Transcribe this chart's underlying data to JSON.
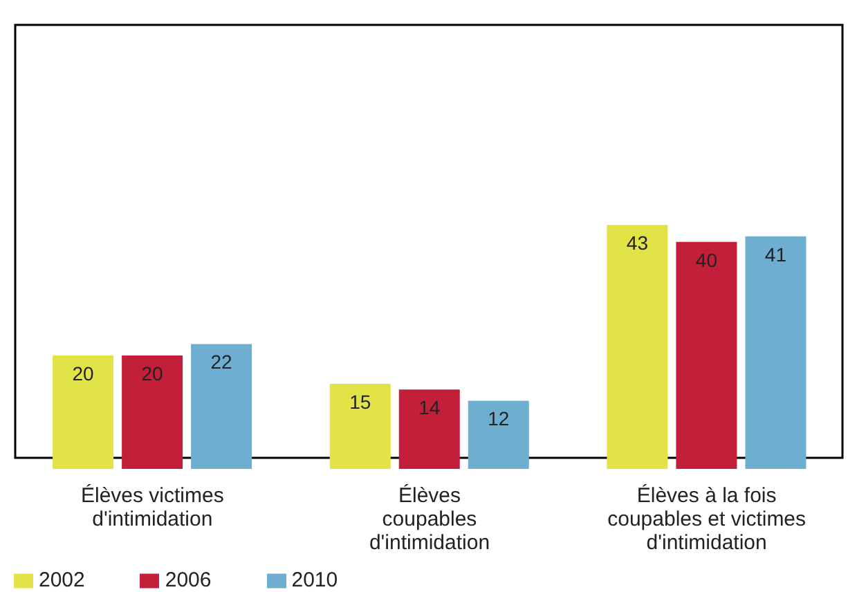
{
  "chart_data": {
    "type": "bar",
    "categories": [
      "Élèves victimes d'intimidation",
      "Élèves coupables d'intimidation",
      "Élèves à la fois coupables et victimes d'intimidation"
    ],
    "series": [
      {
        "name": "2002",
        "color": "#e2e346",
        "values": [
          20,
          15,
          43
        ]
      },
      {
        "name": "2006",
        "color": "#c21f3a",
        "values": [
          20,
          14,
          40
        ]
      },
      {
        "name": "2010",
        "color": "#6eaed0",
        "values": [
          22,
          12,
          41
        ]
      }
    ],
    "data_labels": true,
    "legend": "bottom left",
    "grid": false
  }
}
